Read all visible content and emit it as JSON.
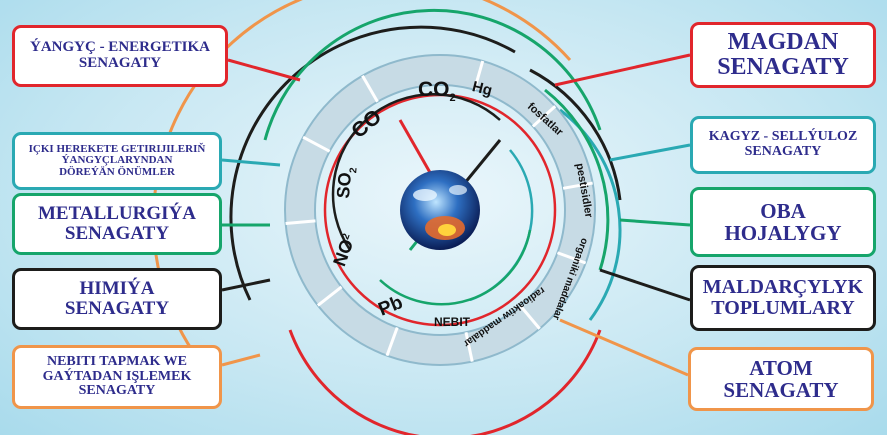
{
  "left_boxes": [
    {
      "id": "fuel-energy",
      "text": "ÝANGYÇ - ENERGETIKA\nSENAGATY",
      "color": "#e1262c"
    },
    {
      "id": "transport",
      "text": "IÇKI HEREKETE GETIRIJILERIŇ\nÝANGYÇLARYNDAN\nDÖREÝÄN ÖNÜMLER",
      "color": "#2aa9b3"
    },
    {
      "id": "metallurgy",
      "text": "METALLURGIÝA\nSENAGATY",
      "color": "#16a56b"
    },
    {
      "id": "chemistry",
      "text": "HIMIÝA\nSENAGATY",
      "color": "#1d1d1b"
    },
    {
      "id": "oil-refining",
      "text": "NEBITI TAPMAK WE\nGAÝTADAN IŞLEMEK\nSENAGATY",
      "color": "#f0954a"
    }
  ],
  "right_boxes": [
    {
      "id": "mining",
      "text": "MAGDAN\nSENAGATY",
      "color": "#e1262c"
    },
    {
      "id": "paper",
      "text": "KAGYZ - SELLÝULOZ\nSENAGATY",
      "color": "#2aa9b3"
    },
    {
      "id": "agriculture",
      "text": "OBA\nHOJALYGY",
      "color": "#16a56b"
    },
    {
      "id": "livestock",
      "text": "MALDARÇYLYK\nTOPLUMLARY",
      "color": "#1d1d1b"
    },
    {
      "id": "nuclear",
      "text": "ATOM\nSENAGATY",
      "color": "#f0954a"
    }
  ],
  "ring_segments": [
    {
      "id": "co2",
      "label": "CO",
      "sub": "2"
    },
    {
      "id": "hg",
      "label": "Hg",
      "sub": ""
    },
    {
      "id": "phosphates",
      "label": "fosfatlar",
      "sub": ""
    },
    {
      "id": "pesticides",
      "label": "pestisidler",
      "sub": ""
    },
    {
      "id": "organic",
      "label": "organiki maddalar",
      "sub": ""
    },
    {
      "id": "radioactive",
      "label": "radioaktiw maddalar",
      "sub": ""
    },
    {
      "id": "oil",
      "label": "NEBIT",
      "sub": ""
    },
    {
      "id": "pb",
      "label": "Pb",
      "sub": ""
    },
    {
      "id": "no2",
      "label": "NO",
      "sub": "2"
    },
    {
      "id": "so2",
      "label": "SO",
      "sub": "2"
    },
    {
      "id": "co",
      "label": "CO",
      "sub": ""
    }
  ],
  "colors": {
    "red": "#e1262c",
    "teal": "#2aa9b3",
    "green": "#16a56b",
    "black": "#1d1d1b",
    "orange": "#f0954a",
    "text": "#2e2c8c"
  },
  "center_icon": "earth-globe-icon"
}
